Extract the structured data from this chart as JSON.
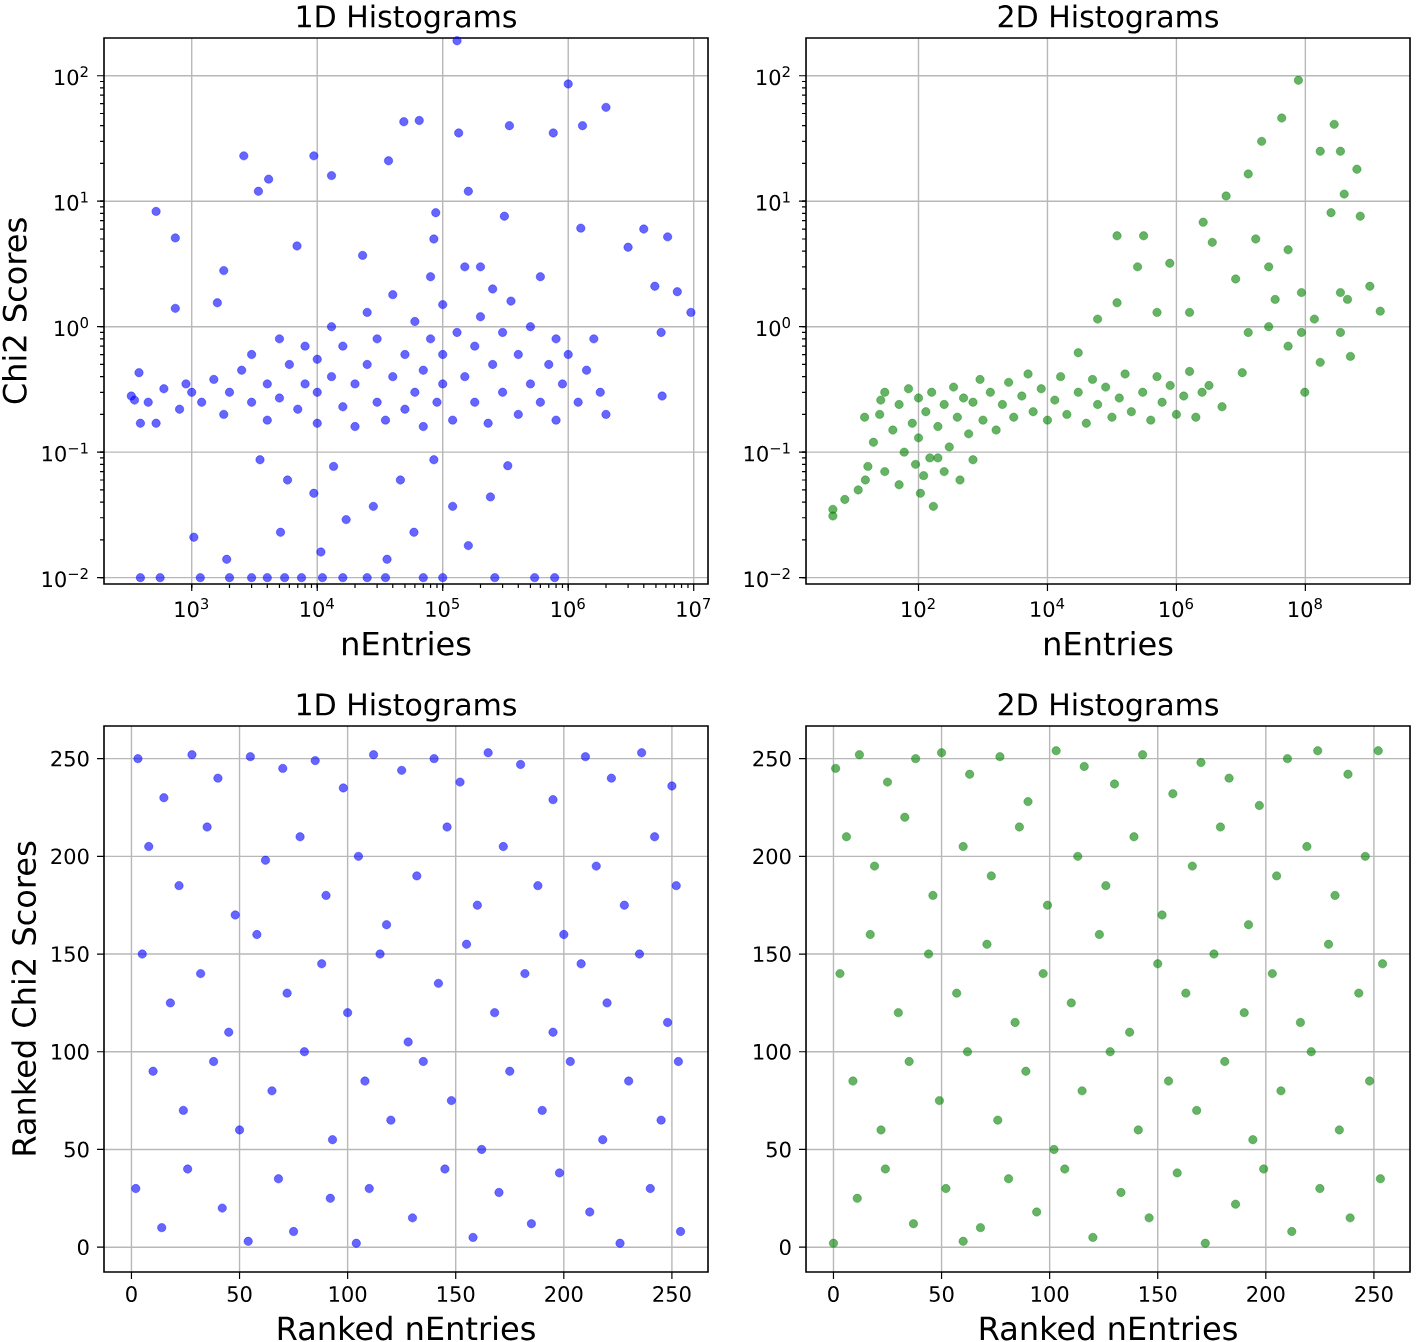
{
  "chart_data": [
    {
      "type": "scatter",
      "title": "1D Histograms",
      "xlabel": "nEntries",
      "ylabel": "Chi2 Scores",
      "log": "xy",
      "grid": true,
      "marker": "circle",
      "xlim": [
        200,
        13000000.0
      ],
      "ylim": [
        0.0089,
        200
      ],
      "xticks": [
        {
          "value": 1000,
          "label": "10$^{3}$"
        },
        {
          "value": 10000,
          "label": "10$^{4}$"
        },
        {
          "value": 100000,
          "label": "10$^{5}$"
        },
        {
          "value": 1000000,
          "label": "10$^{6}$"
        },
        {
          "value": 10000000,
          "label": "10$^{7}$"
        }
      ],
      "yticks": [
        {
          "value": 0.01,
          "label": "10$^{−2}$"
        },
        {
          "value": 0.1,
          "label": "10$^{−1}$"
        },
        {
          "value": 1,
          "label": "10$^{0}$"
        },
        {
          "value": 10,
          "label": "10$^{1}$"
        },
        {
          "value": 100,
          "label": "10$^{2}$"
        }
      ],
      "series": [
        {
          "color": "#0000ff",
          "x": [
            330,
            450,
            600,
            800,
            900,
            1000,
            1200,
            1500,
            1800,
            2000,
            2500,
            3000,
            3000,
            4000,
            4000,
            5000,
            5000,
            6000,
            7000,
            8000,
            8000,
            10000.0,
            10000.0,
            10000.0,
            13000.0,
            13000.0,
            16000.0,
            16000.0,
            20000.0,
            20000.0,
            25000.0,
            25000.0,
            30000.0,
            30000.0,
            35000.0,
            40000.0,
            40000.0,
            50000.0,
            50000.0,
            60000.0,
            60000.0,
            70000.0,
            70000.0,
            80000.0,
            80000.0,
            90000.0,
            100000.0,
            100000.0,
            100000.0,
            120000.0,
            130000.0,
            150000.0,
            150000.0,
            180000.0,
            180000.0,
            200000.0,
            230000.0,
            250000.0,
            250000.0,
            300000.0,
            300000.0,
            350000.0,
            400000.0,
            400000.0,
            500000.0,
            500000.0,
            600000.0,
            600000.0,
            700000.0,
            800000.0,
            800000.0,
            900000.0,
            1000000.0,
            1200000.0,
            1400000.0,
            1800000.0,
            2000000.0,
            1600000.0,
            130000.0,
            1000000.0,
            2000000.0,
            49000.0,
            65000.0,
            2600,
            9400,
            134000.0,
            340000.0,
            1300000.0,
            760000.0,
            520,
            740,
            3400,
            4100,
            13000.0,
            37000.0,
            160000.0,
            88000.0,
            310000.0,
            1260000.0,
            4000000.0,
            6200000.0,
            3000000.0,
            4900000.0,
            9500000.0,
            7400000.0,
            5500000.0,
            5600000.0,
            740,
            1600,
            380,
            350,
            390,
            520,
            1800,
            6900,
            23000.0,
            200000.0,
            85000.0,
            3500,
            5800,
            9400,
            13500.0,
            17000.0,
            28000.0,
            46000.0,
            59000.0,
            85000.0,
            120000.0,
            160000.0,
            240000.0,
            330000.0,
            5100,
            1900,
            1040,
            36000.0,
            10700.0,
            390,
            560,
            1170,
            2000,
            3000,
            4000,
            5500,
            7500,
            11000.0,
            16000.0,
            25000.0,
            35000.0,
            70000.0,
            100000.0,
            260000.0,
            540000.0,
            780000.0
          ],
          "values": [
            0.28,
            0.25,
            0.32,
            0.22,
            0.35,
            0.3,
            0.25,
            0.38,
            0.2,
            0.3,
            0.45,
            0.25,
            0.6,
            0.18,
            0.35,
            0.8,
            0.27,
            0.5,
            0.22,
            0.35,
            0.7,
            0.17,
            0.3,
            0.55,
            1.0,
            0.4,
            0.23,
            0.7,
            0.16,
            0.35,
            0.5,
            1.3,
            0.25,
            0.8,
            0.18,
            0.4,
            1.8,
            0.6,
            0.22,
            1.1,
            0.3,
            0.16,
            0.45,
            0.8,
            2.5,
            0.25,
            0.35,
            0.6,
            1.5,
            0.18,
            0.9,
            0.4,
            3.0,
            0.25,
            0.7,
            1.2,
            0.17,
            0.5,
            2.0,
            0.3,
            0.9,
            1.6,
            0.2,
            0.6,
            0.35,
            1.0,
            2.5,
            0.25,
            0.5,
            0.8,
            0.18,
            0.35,
            0.6,
            0.25,
            0.45,
            0.3,
            0.2,
            0.8,
            190,
            86,
            56,
            43,
            44,
            23,
            23,
            35,
            40,
            40,
            35,
            8.3,
            5.1,
            12,
            15,
            16,
            21,
            12,
            8.1,
            7.6,
            6.1,
            6.0,
            5.2,
            4.3,
            2.1,
            1.3,
            1.9,
            0.9,
            0.28,
            1.4,
            1.55,
            0.43,
            0.26,
            0.17,
            0.17,
            2.8,
            4.4,
            3.7,
            3.0,
            5.0,
            0.087,
            0.06,
            0.047,
            0.077,
            0.029,
            0.037,
            0.06,
            0.023,
            0.087,
            0.037,
            0.018,
            0.044,
            0.078,
            0.023,
            0.014,
            0.021,
            0.014,
            0.016,
            0.01,
            0.01,
            0.01,
            0.01,
            0.01,
            0.01,
            0.01,
            0.01,
            0.01,
            0.01,
            0.01,
            0.01,
            0.01,
            0.01,
            0.01,
            0.01,
            0.01
          ]
        }
      ]
    },
    {
      "type": "scatter",
      "title": "2D Histograms",
      "xlabel": "nEntries",
      "log": "xy",
      "grid": true,
      "marker": "circle",
      "xlim": [
        1.8,
        4200000000.0
      ],
      "ylim": [
        0.0089,
        200
      ],
      "xticks": [
        {
          "value": 100,
          "label": "10$^{2}$"
        },
        {
          "value": 10000,
          "label": "10$^{4}$"
        },
        {
          "value": 1000000,
          "label": "10$^{6}$"
        },
        {
          "value": 100000000,
          "label": "10$^{8}$"
        }
      ],
      "yticks": [
        {
          "value": 0.01,
          "label": "10$^{−2}$"
        },
        {
          "value": 0.1,
          "label": "10$^{−1}$"
        },
        {
          "value": 1,
          "label": "10$^{0}$"
        },
        {
          "value": 10,
          "label": "10$^{1}$"
        },
        {
          "value": 100,
          "label": "10$^{2}$"
        }
      ],
      "series": [
        {
          "color": "#008000",
          "x": [
            20,
            25,
            30,
            40,
            50,
            60,
            70,
            80,
            100,
            100,
            130,
            150,
            160,
            200,
            250,
            300,
            350,
            400,
            500,
            600,
            700,
            900,
            1000,
            1300,
            1600,
            2000,
            2500,
            3000,
            4000,
            5000,
            6000,
            8000,
            10000.0,
            13000.0,
            16000.0,
            20000.0,
            30000.0,
            40000.0,
            50000.0,
            60000.0,
            80000.0,
            100000.0,
            130000.0,
            160000.0,
            200000.0,
            300000.0,
            400000.0,
            500000.0,
            600000.0,
            800000.0,
            1000000.0,
            1300000.0,
            1600000.0,
            2000000.0,
            2500000.0,
            78000000.0,
            43000000.0,
            280000000.0,
            21000000.0,
            170000000.0,
            350000000.0,
            630000000.0,
            13000000.0,
            5900000.0,
            400000000.0,
            250000000.0,
            710000000.0,
            2600000.0,
            3600000.0,
            790000.0,
            17000000.0,
            54000000.0,
            1450000000.0,
            1000000000.0,
            450000000.0,
            98000000.0,
            500000000.0,
            170000000.0,
            54000000.0,
            13000000.0,
            34000000.0,
            87000000.0,
            138000000.0,
            8300000.0,
            10500000.0,
            3200000.0,
            5100000.0,
            1600000.0,
            500000.0,
            250000.0,
            120000.0,
            60000.0,
            27000000.0,
            27000000.0,
            87000000.0,
            350000000.0,
            350000000.0,
            120000.0,
            310000.0,
            30000.0,
            4.7,
            4.7,
            7.2,
            11.6,
            16.4,
            14.6,
            26,
            170,
            107,
            440,
            700,
            15,
            30,
            50,
            90,
            120,
            200,
            250
          ],
          "values": [
            0.12,
            0.2,
            0.3,
            0.15,
            0.24,
            0.1,
            0.32,
            0.17,
            0.27,
            0.13,
            0.21,
            0.09,
            0.3,
            0.16,
            0.24,
            0.11,
            0.33,
            0.19,
            0.27,
            0.14,
            0.25,
            0.38,
            0.18,
            0.3,
            0.15,
            0.24,
            0.36,
            0.19,
            0.28,
            0.42,
            0.21,
            0.32,
            0.18,
            0.26,
            0.4,
            0.2,
            0.3,
            0.17,
            0.38,
            0.24,
            0.33,
            0.19,
            0.27,
            0.42,
            0.21,
            0.3,
            0.18,
            0.4,
            0.25,
            0.34,
            0.2,
            0.28,
            0.44,
            0.19,
            0.3,
            92,
            46,
            41,
            30,
            25,
            25,
            18,
            16.5,
            11,
            11.4,
            8.1,
            7.6,
            6.8,
            4.7,
            3.2,
            5.0,
            4.1,
            1.33,
            2.1,
            1.65,
            0.3,
            0.58,
            0.52,
            0.7,
            0.9,
            1.65,
            1.87,
            1.15,
            2.4,
            0.43,
            0.34,
            0.23,
            1.3,
            1.3,
            3.0,
            1.55,
            1.15,
            3.0,
            1.0,
            0.9,
            0.9,
            1.87,
            5.3,
            5.3,
            0.62,
            0.031,
            0.035,
            0.042,
            0.05,
            0.077,
            0.19,
            0.26,
            0.037,
            0.047,
            0.06,
            0.087,
            0.06,
            0.07,
            0.055,
            0.08,
            0.065,
            0.09,
            0.07
          ]
        }
      ]
    },
    {
      "type": "scatter",
      "title": "1D Histograms",
      "xlabel": "Ranked nEntries",
      "ylabel": "Ranked Chi2 Scores",
      "grid": true,
      "marker": "circle",
      "xlim": [
        -12.7,
        266.7
      ],
      "ylim": [
        -12.7,
        266.7
      ],
      "xticks": [
        0,
        50,
        100,
        150,
        200,
        250
      ],
      "yticks": [
        0,
        50,
        100,
        150,
        200,
        250
      ],
      "series": [
        {
          "color": "#0000ff",
          "x": [
            3,
            15,
            28,
            40,
            55,
            70,
            85,
            98,
            112,
            125,
            140,
            152,
            165,
            180,
            195,
            210,
            222,
            236,
            250,
            8,
            22,
            35,
            48,
            62,
            78,
            90,
            105,
            118,
            132,
            146,
            160,
            172,
            188,
            200,
            215,
            228,
            242,
            252,
            5,
            18,
            32,
            45,
            58,
            72,
            88,
            100,
            115,
            128,
            142,
            155,
            168,
            182,
            195,
            208,
            220,
            235,
            248,
            10,
            24,
            38,
            50,
            65,
            80,
            93,
            108,
            120,
            135,
            148,
            162,
            175,
            190,
            203,
            218,
            230,
            245,
            253,
            2,
            14,
            26,
            42,
            54,
            68,
            75,
            92,
            104,
            110,
            130,
            145,
            158,
            170,
            185,
            198,
            212,
            226,
            240,
            254
          ],
          "values": [
            250,
            230,
            252,
            240,
            251,
            245,
            249,
            235,
            252,
            244,
            250,
            238,
            253,
            247,
            229,
            251,
            240,
            253,
            236,
            205,
            185,
            215,
            170,
            198,
            210,
            180,
            200,
            165,
            190,
            215,
            175,
            205,
            185,
            160,
            195,
            175,
            210,
            185,
            150,
            125,
            140,
            110,
            160,
            130,
            145,
            120,
            150,
            105,
            135,
            155,
            120,
            140,
            110,
            145,
            125,
            150,
            115,
            90,
            70,
            95,
            60,
            80,
            100,
            55,
            85,
            65,
            95,
            75,
            50,
            90,
            70,
            95,
            55,
            85,
            65,
            95,
            30,
            10,
            40,
            20,
            3,
            35,
            8,
            25,
            2,
            30,
            15,
            40,
            5,
            28,
            12,
            38,
            18,
            2,
            30,
            8
          ]
        }
      ]
    },
    {
      "type": "scatter",
      "title": "2D Histograms",
      "xlabel": "Ranked nEntries",
      "grid": true,
      "marker": "circle",
      "xlim": [
        -12.7,
        266.7
      ],
      "ylim": [
        -12.7,
        266.7
      ],
      "xticks": [
        0,
        50,
        100,
        150,
        200,
        250
      ],
      "yticks": [
        0,
        50,
        100,
        150,
        200,
        250
      ],
      "series": [
        {
          "color": "#008000",
          "x": [
            1,
            12,
            25,
            38,
            50,
            63,
            77,
            90,
            103,
            116,
            130,
            143,
            157,
            170,
            183,
            197,
            210,
            224,
            238,
            252,
            6,
            19,
            33,
            46,
            60,
            73,
            86,
            99,
            113,
            126,
            139,
            152,
            166,
            179,
            192,
            205,
            219,
            232,
            246,
            3,
            17,
            30,
            44,
            57,
            71,
            84,
            97,
            110,
            123,
            137,
            150,
            163,
            176,
            190,
            203,
            216,
            229,
            243,
            254,
            9,
            22,
            35,
            49,
            62,
            76,
            89,
            102,
            115,
            128,
            141,
            155,
            168,
            181,
            194,
            207,
            221,
            234,
            248,
            0,
            11,
            24,
            37,
            52,
            60,
            68,
            81,
            94,
            107,
            120,
            133,
            146,
            159,
            172,
            186,
            199,
            212,
            225,
            239,
            253
          ],
          "values": [
            245,
            252,
            238,
            250,
            253,
            242,
            251,
            228,
            254,
            246,
            237,
            252,
            232,
            248,
            240,
            226,
            250,
            254,
            242,
            254,
            210,
            195,
            220,
            180,
            205,
            190,
            215,
            175,
            200,
            185,
            210,
            170,
            195,
            215,
            165,
            190,
            205,
            180,
            200,
            140,
            160,
            120,
            150,
            130,
            155,
            115,
            140,
            125,
            160,
            110,
            145,
            130,
            150,
            120,
            140,
            115,
            155,
            130,
            145,
            85,
            60,
            95,
            75,
            100,
            65,
            90,
            50,
            80,
            100,
            60,
            85,
            70,
            95,
            55,
            80,
            100,
            60,
            85,
            2,
            25,
            40,
            12,
            30,
            3,
            10,
            35,
            18,
            40,
            5,
            28,
            15,
            38,
            2,
            22,
            40,
            8,
            30,
            15,
            35
          ]
        }
      ]
    }
  ]
}
